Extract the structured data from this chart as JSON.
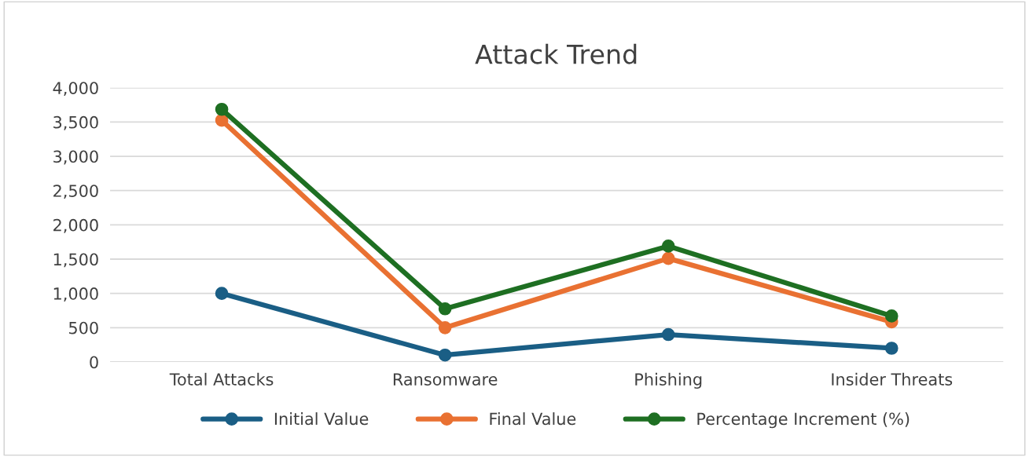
{
  "chart_data": {
    "type": "line",
    "title": "Attack Trend",
    "categories": [
      "Total Attacks",
      "Ransomware",
      "Phishing",
      "Insider Threats"
    ],
    "series": [
      {
        "name": "Initial Value",
        "color": "#1a5e85",
        "values": [
          1000,
          100,
          400,
          200
        ]
      },
      {
        "name": "Final Value",
        "color": "#e97132",
        "values": [
          3525,
          500,
          1510,
          585
        ]
      },
      {
        "name": "Percentage Increment (%)",
        "color": "#1e6f22",
        "values": [
          3685,
          775,
          1690,
          670
        ]
      }
    ],
    "ylim": [
      0,
      4000
    ],
    "yticks": [
      {
        "value": 0,
        "label": "0"
      },
      {
        "value": 500,
        "label": "500"
      },
      {
        "value": 1000,
        "label": "1,000"
      },
      {
        "value": 1500,
        "label": "1,500"
      },
      {
        "value": 2000,
        "label": "2,000"
      },
      {
        "value": 2500,
        "label": "2,500"
      },
      {
        "value": 3000,
        "label": "3,000"
      },
      {
        "value": 3500,
        "label": "3,500"
      },
      {
        "value": 4000,
        "label": "4,000"
      }
    ],
    "grid": "y",
    "legend": "bottom",
    "marker": "circle",
    "line_style": "solid"
  }
}
